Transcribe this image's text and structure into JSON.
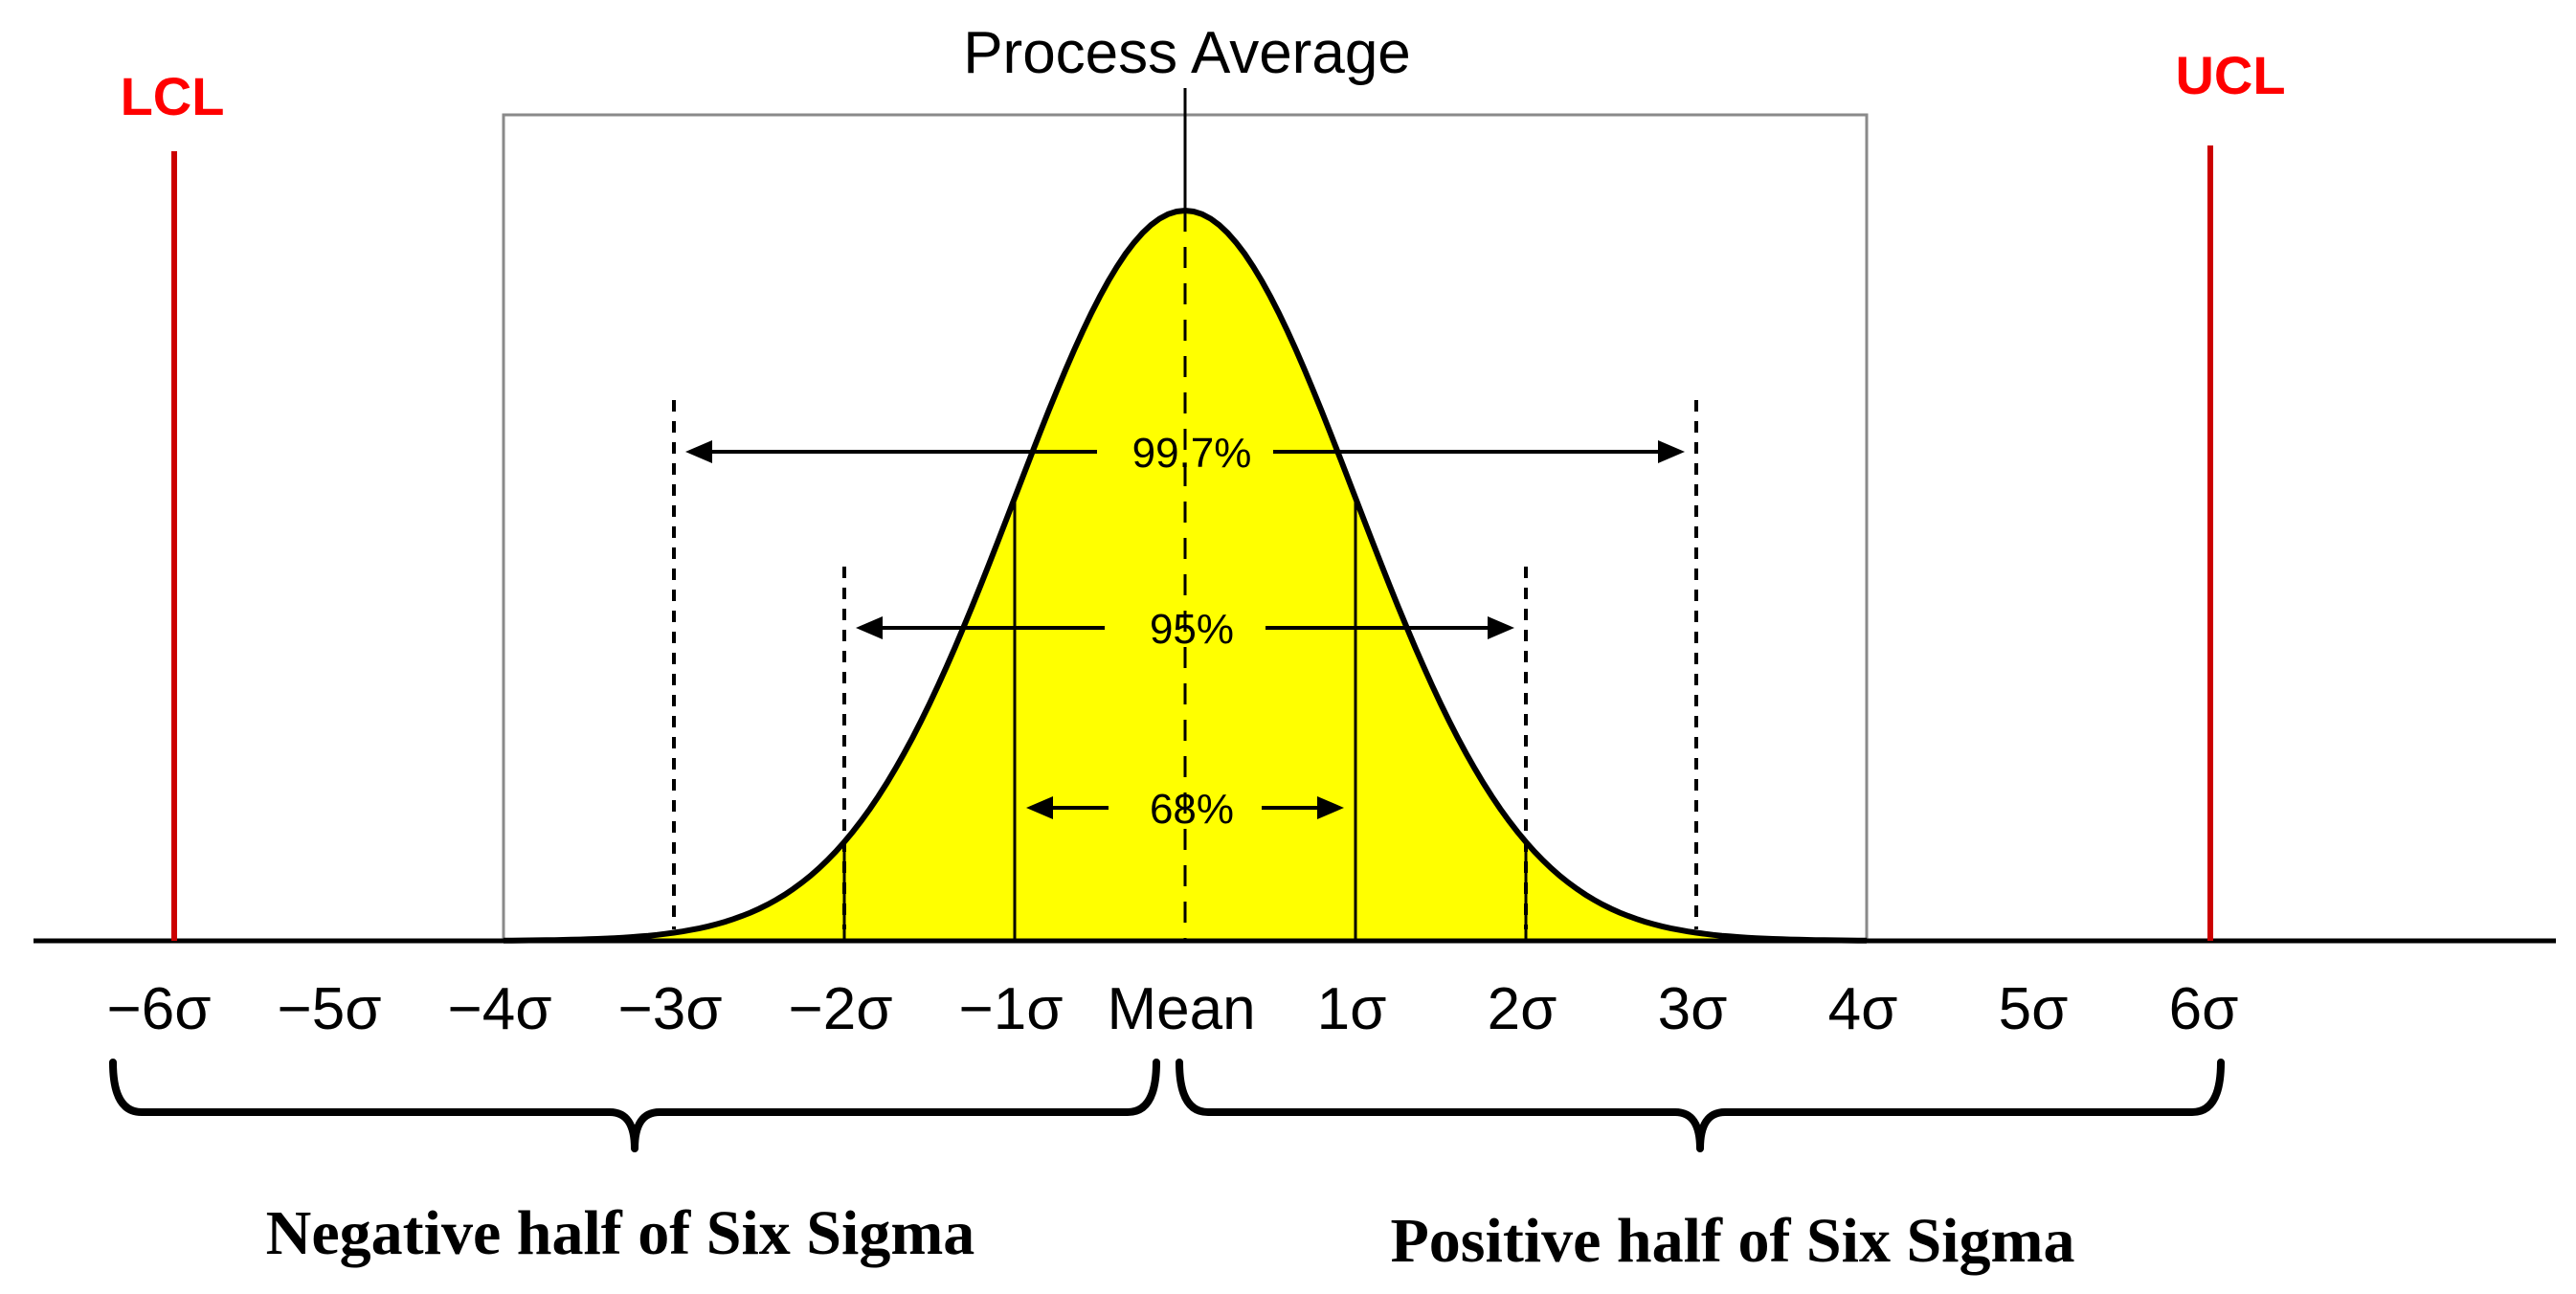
{
  "diagram": {
    "title": "Process Average",
    "lcl_label": "LCL",
    "ucl_label": "UCL",
    "lcl_position_sigma": -6,
    "ucl_position_sigma": 6,
    "ticks": [
      "−6σ",
      "−5σ",
      "−4σ",
      "−3σ",
      "−2σ",
      "−1σ",
      "Mean",
      "1σ",
      "2σ",
      "3σ",
      "4σ",
      "5σ",
      "6σ"
    ],
    "ranges": [
      {
        "label": "99.7%",
        "sigma": 3
      },
      {
        "label": "95%",
        "sigma": 2
      },
      {
        "label": "68%",
        "sigma": 1
      }
    ],
    "negative_half_label": "Negative half of Six Sigma",
    "positive_half_label": "Positive half of Six Sigma",
    "colors": {
      "curve_fill": "#ffff00",
      "limit_line": "#cc0000",
      "limit_label": "#ff0000",
      "axis": "#000000",
      "box": "#8a8a8a"
    }
  }
}
